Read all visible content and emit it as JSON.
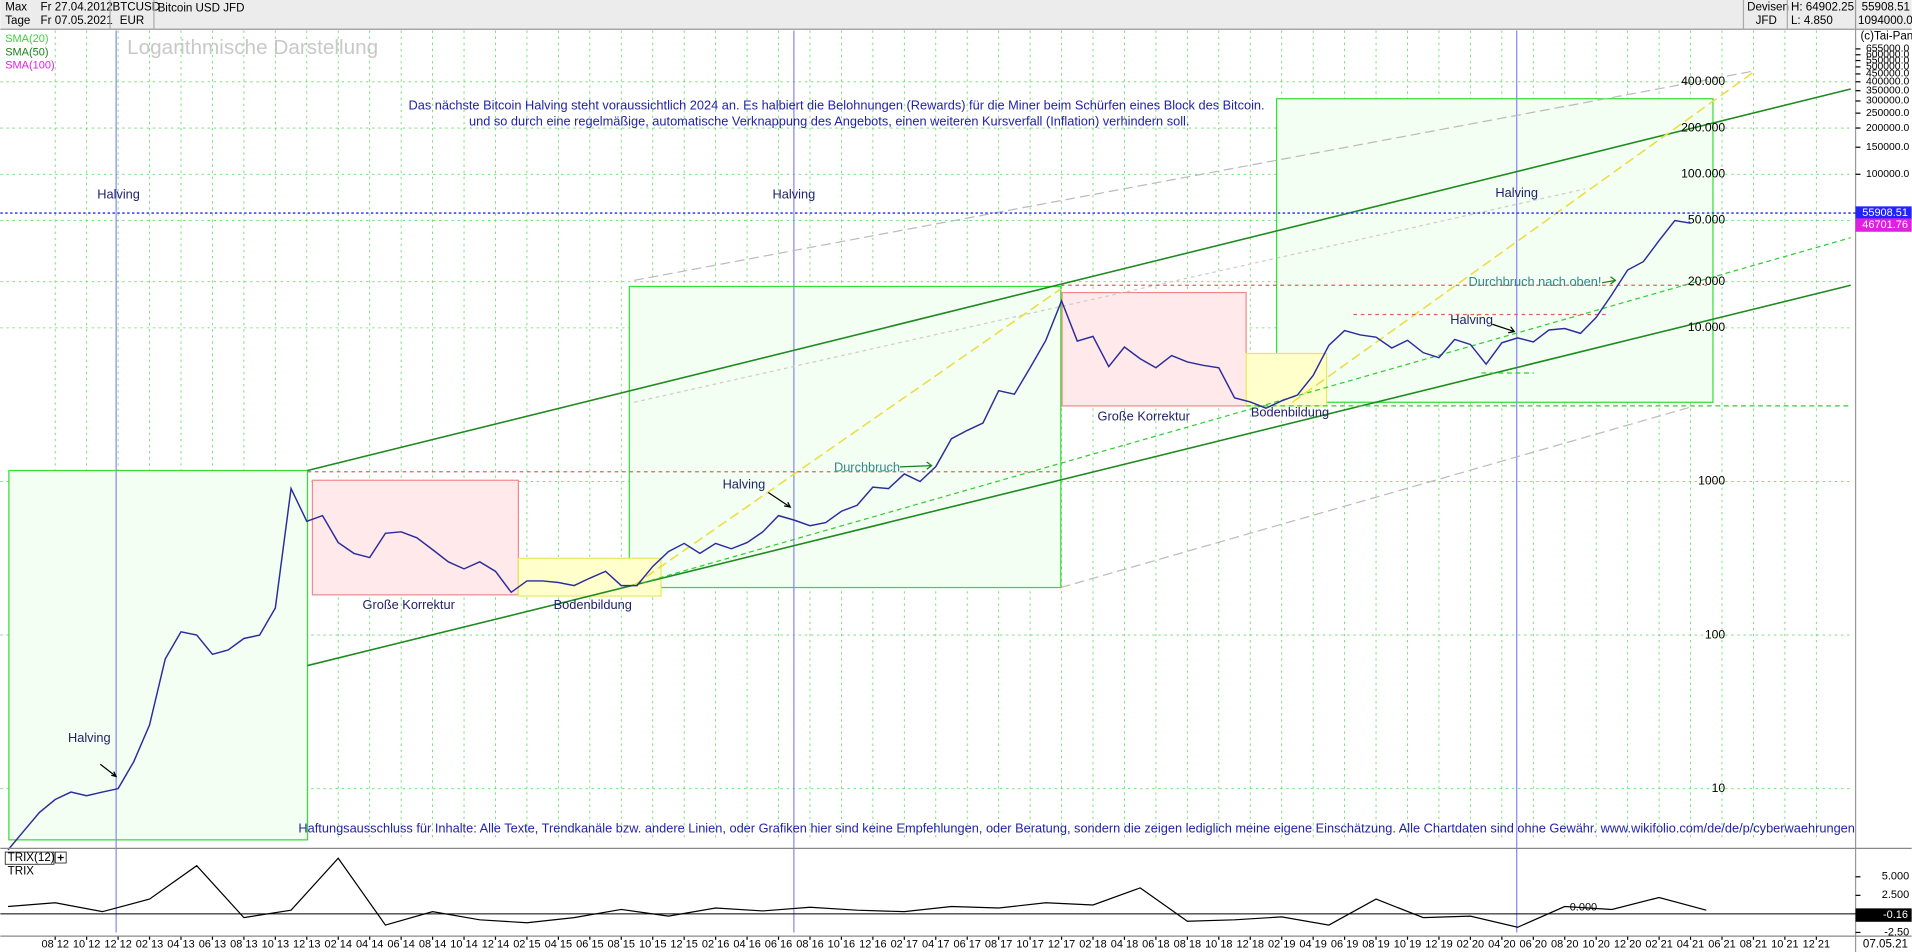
{
  "header": {
    "range": "Max",
    "from": "Fr 27.04.2012",
    "symbol": "BTCUSD",
    "currency": "EUR",
    "period": "Tage",
    "to": "Fr 07.05.2021",
    "group": "Devisen",
    "broker": "JFD",
    "high": "H: 64902.25",
    "low": "L: 4.850",
    "axis_max": "1094000.0",
    "copyright": "(c)Tai-Pan",
    "date": "07.05.21"
  },
  "chart_data": {
    "type": "line",
    "log_scale": true,
    "grid": true,
    "watermark": "Logarithmische Darstellung",
    "indicators": [
      {
        "name": "SMA(20)",
        "color": "#3fcf3f"
      },
      {
        "name": "SMA(50)",
        "color": "#1a7f1a"
      },
      {
        "name": "SMA(100)",
        "color": "#e020e0"
      }
    ],
    "series": [
      {
        "name": "Bitcoin USD JFD",
        "color": "#2c2c9c",
        "x": [
          "05 12",
          "06 12",
          "07 12",
          "08 12",
          "09 12",
          "10 12",
          "11 12",
          "12 12",
          "01 13",
          "02 13",
          "03 13",
          "04 13",
          "05 13",
          "06 13",
          "07 13",
          "08 13",
          "09 13",
          "10 13",
          "11 13",
          "12 13",
          "01 14",
          "02 14",
          "03 14",
          "04 14",
          "05 14",
          "06 14",
          "07 14",
          "08 14",
          "09 14",
          "10 14",
          "11 14",
          "12 14",
          "01 15",
          "02 15",
          "03 15",
          "04 15",
          "05 15",
          "06 15",
          "07 15",
          "08 15",
          "09 15",
          "10 15",
          "11 15",
          "12 15",
          "01 16",
          "02 16",
          "03 16",
          "04 16",
          "05 16",
          "06 16",
          "07 16",
          "08 16",
          "09 16",
          "10 16",
          "11 16",
          "12 16",
          "01 17",
          "02 17",
          "03 17",
          "04 17",
          "05 17",
          "06 17",
          "07 17",
          "08 17",
          "09 17",
          "10 17",
          "11 17",
          "12 17",
          "01 18",
          "02 18",
          "03 18",
          "04 18",
          "05 18",
          "06 18",
          "07 18",
          "08 18",
          "09 18",
          "10 18",
          "11 18",
          "12 18",
          "01 19",
          "02 19",
          "03 19",
          "04 19",
          "05 19",
          "06 19",
          "07 19",
          "08 19",
          "09 19",
          "10 19",
          "11 19",
          "12 19",
          "01 20",
          "02 20",
          "03 20",
          "04 20",
          "05 20",
          "06 20",
          "07 20",
          "08 20",
          "09 20",
          "10 20",
          "11 20",
          "12 20",
          "01 21",
          "02 21",
          "03 21",
          "04 21"
        ],
        "values": [
          4,
          5.3,
          7,
          8.5,
          9.5,
          9,
          9.5,
          10,
          15,
          26,
          70,
          105,
          100,
          75,
          80,
          95,
          100,
          150,
          900,
          550,
          600,
          400,
          340,
          320,
          460,
          470,
          430,
          360,
          300,
          270,
          300,
          260,
          190,
          225,
          225,
          220,
          210,
          235,
          260,
          210,
          210,
          280,
          350,
          395,
          340,
          395,
          365,
          400,
          470,
          600,
          560,
          515,
          540,
          640,
          700,
          920,
          900,
          1120,
          1000,
          1250,
          1900,
          2150,
          2400,
          3900,
          3700,
          5500,
          8300,
          15000,
          8200,
          8800,
          5600,
          7500,
          6300,
          5500,
          6600,
          6000,
          5700,
          5500,
          3500,
          3300,
          3000,
          3350,
          3650,
          4900,
          7700,
          9600,
          9000,
          8700,
          7400,
          8300,
          6900,
          6400,
          8400,
          7800,
          5800,
          8000,
          8600,
          8100,
          9700,
          9900,
          9200,
          11700,
          16500,
          23800,
          27000,
          37000,
          50000,
          48000
        ]
      }
    ],
    "last_price": 55908.51,
    "last_price_color": "#2222ff",
    "sma_last": 46701.76,
    "sma_last_color": "#e020e0",
    "ylim": [
      4.56,
      912000
    ],
    "yticks": [
      {
        "value": 400000,
        "label": "400.000"
      },
      {
        "value": 200000,
        "label": "200.000"
      },
      {
        "value": 100000,
        "label": "100.000"
      },
      {
        "value": 50000,
        "label": "50.000"
      },
      {
        "value": 20000,
        "label": "20.000"
      },
      {
        "value": 10000,
        "label": "10.000"
      },
      1000,
      100,
      10
    ],
    "y2ticks": [
      {
        "value": 655000,
        "label": "655000.0"
      },
      {
        "value": 600000,
        "label": "600000.0"
      },
      {
        "value": 550000,
        "label": "550000.0"
      },
      {
        "value": 500000,
        "label": "500000.0"
      },
      {
        "value": 450000,
        "label": "450000.0"
      },
      {
        "value": 400000,
        "label": "400000.0"
      },
      {
        "value": 350000,
        "label": "350000.0"
      },
      {
        "value": 300000,
        "label": "300000.0"
      },
      {
        "value": 250000,
        "label": "250000.0"
      },
      {
        "value": 200000,
        "label": "200000.0"
      },
      {
        "value": 150000,
        "label": "150000.0"
      },
      {
        "value": 100000,
        "label": "100000.0"
      }
    ],
    "xticks": [
      "08 12",
      "10 12",
      "12 12",
      "02 13",
      "04 13",
      "06 13",
      "08 13",
      "10 13",
      "12 13",
      "02 14",
      "04 14",
      "06 14",
      "08 14",
      "10 14",
      "12 14",
      "02 15",
      "04 15",
      "06 15",
      "08 15",
      "10 15",
      "12 15",
      "02 16",
      "04 16",
      "06 16",
      "08 16",
      "10 16",
      "12 16",
      "02 17",
      "04 17",
      "06 17",
      "08 17",
      "10 17",
      "12 17",
      "02 18",
      "04 18",
      "06 18",
      "08 18",
      "10 18",
      "12 18",
      "02 19",
      "04 19",
      "06 19",
      "08 19",
      "10 19",
      "12 19",
      "02 20",
      "04 20",
      "06 20",
      "08 20",
      "10 20",
      "12 20",
      "02 21",
      "04 21",
      "06 21",
      "08 21",
      "10 21",
      "12 21"
    ],
    "annotations": [
      "Das nächste Bitcoin Halving steht voraussichtlich 2024 an. Es halbiert die Belohnungen (Rewards) für die Miner beim Schürfen eines Block des Bitcoin.",
      "und so durch eine regelmäßige, automatische Verknappung des Angebots, einen weiteren Kursverfall (Inflation) verhindern soll.",
      "Halving",
      "Halving",
      "Halving",
      "Halving",
      "Halving",
      "Halving",
      "Große Korrektur",
      "Große Korrektur",
      "Bodenbildung",
      "Bodenbildung",
      "Durchbruch",
      "Durchbruch nach oben!",
      "Haftungsausschluss für Inhalte: Alle Texte, Trendkanäle bzw. andere Linien, oder Grafiken hier sind keine Empfehlungen, oder Beratung, sondern die zeigen lediglich meine eigene Einschätzung. Alle Chartdaten sind ohne Gewähr.  www.wikifolio.com/de/de/p/cyberwaehrungen"
    ],
    "trix": {
      "title": "TRIX(12)",
      "name": "TRIX",
      "color": "#000000",
      "x": [
        "05 12",
        "08 12",
        "11 12",
        "02 13",
        "05 13",
        "08 13",
        "11 13",
        "02 14",
        "05 14",
        "08 14",
        "11 14",
        "02 15",
        "05 15",
        "08 15",
        "11 15",
        "02 16",
        "05 16",
        "08 16",
        "11 16",
        "02 17",
        "05 17",
        "08 17",
        "11 17",
        "02 18",
        "05 18",
        "08 18",
        "11 18",
        "02 19",
        "05 19",
        "08 19",
        "11 19",
        "02 20",
        "05 20",
        "08 20",
        "11 20",
        "02 21",
        "05 21"
      ],
      "values": [
        1.0,
        1.5,
        0.3,
        2.0,
        6.5,
        -0.5,
        0.5,
        7.5,
        -1.5,
        0.3,
        -0.8,
        -1.2,
        -0.5,
        0.6,
        -0.3,
        0.8,
        0.4,
        0.9,
        0.5,
        0.3,
        1.0,
        0.8,
        1.5,
        1.2,
        3.5,
        -1.0,
        -0.8,
        -0.4,
        -1.5,
        2.0,
        -0.5,
        -0.3,
        -1.8,
        1.0,
        0.6,
        2.2,
        0.5
      ],
      "last_value": -0.16,
      "ylim": [
        -3,
        8.5
      ],
      "yticks": [
        {
          "value": 5,
          "label": "5.000"
        },
        {
          "value": 2.5,
          "label": "2.500"
        },
        {
          "value": 0,
          "label": "0.000"
        },
        {
          "value": -2.5,
          "label": "-2.50"
        }
      ]
    }
  }
}
